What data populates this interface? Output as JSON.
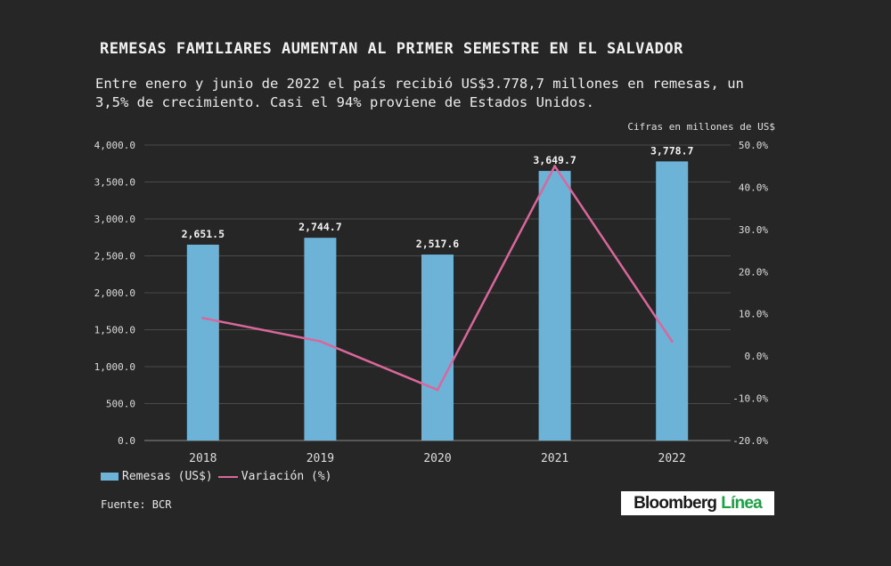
{
  "title": "REMESAS FAMILIARES AUMENTAN AL PRIMER SEMESTRE EN EL SALVADOR",
  "subtitle": "Entre enero y junio de 2022 el país recibió US$3.778,7 millones en remesas, un 3,5% de crecimiento. Casi el 94% proviene de Estados Unidos.",
  "note": "Cifras en millones de US$",
  "source": "Fuente: BCR",
  "logo": {
    "main": "Bloomberg",
    "accent": "Línea"
  },
  "colors": {
    "bar": "#6db3d8",
    "line": "#d9679b",
    "grid": "#4a4a4a",
    "background": "#262626"
  },
  "chart_data": {
    "type": "bar",
    "categories": [
      "2018",
      "2019",
      "2020",
      "2021",
      "2022"
    ],
    "series": [
      {
        "name": "Remesas (US$)",
        "type": "bar",
        "axis": "left",
        "values": [
          2651.5,
          2744.7,
          2517.6,
          3649.7,
          3778.7
        ],
        "labels": [
          "2,651.5",
          "2,744.7",
          "2,517.6",
          "3,649.7",
          "3,778.7"
        ]
      },
      {
        "name": "Variación (%)",
        "type": "line",
        "axis": "right",
        "values": [
          9.0,
          3.5,
          -8.0,
          45.0,
          3.5
        ]
      }
    ],
    "y_left": {
      "lim": [
        0,
        4000
      ],
      "ticks": [
        "0.0",
        "500.0",
        "1,000.0",
        "1,500.0",
        "2,000.0",
        "2,500.0",
        "3,000.0",
        "3,500.0",
        "4,000.0"
      ]
    },
    "y_right": {
      "lim": [
        -20,
        50
      ],
      "ticks": [
        "-20.0%",
        "-10.0%",
        "0.0%",
        "10.0%",
        "20.0%",
        "30.0%",
        "40.0%",
        "50.0%"
      ]
    },
    "grid": true,
    "legend": "bottom-left"
  }
}
